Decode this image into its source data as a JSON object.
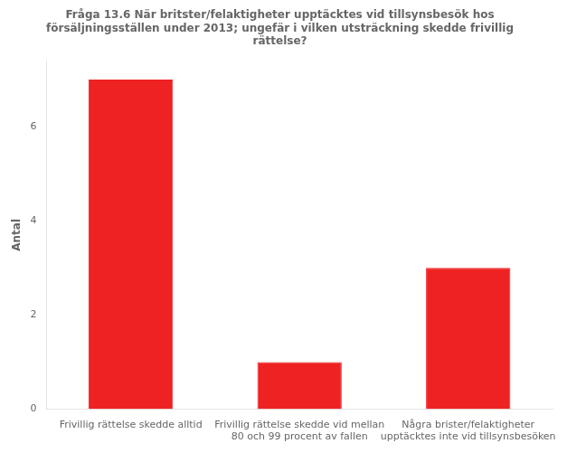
{
  "chart_data": {
    "type": "bar",
    "title": "Fråga 13.6 När britster/felaktigheter upptäcktes vid tillsynsbesök hos\nförsäljningsställen under 2013; ungefär i vilken utsträckning skedde frivillig\nrättelse?",
    "categories": [
      "Frivillig rättelse skedde alltid",
      "Frivillig rättelse skedde vid mellan\n80 och 99 procent av fallen",
      "Några brister/felaktigheter\nupptäcktes inte vid tillsynsbesöken"
    ],
    "values": [
      7,
      1,
      3
    ],
    "color": "#ee2222",
    "ylabel": "Antal",
    "ylim": [
      0,
      7.4
    ],
    "yticks": [
      0,
      2,
      4,
      6
    ],
    "grid": false
  }
}
